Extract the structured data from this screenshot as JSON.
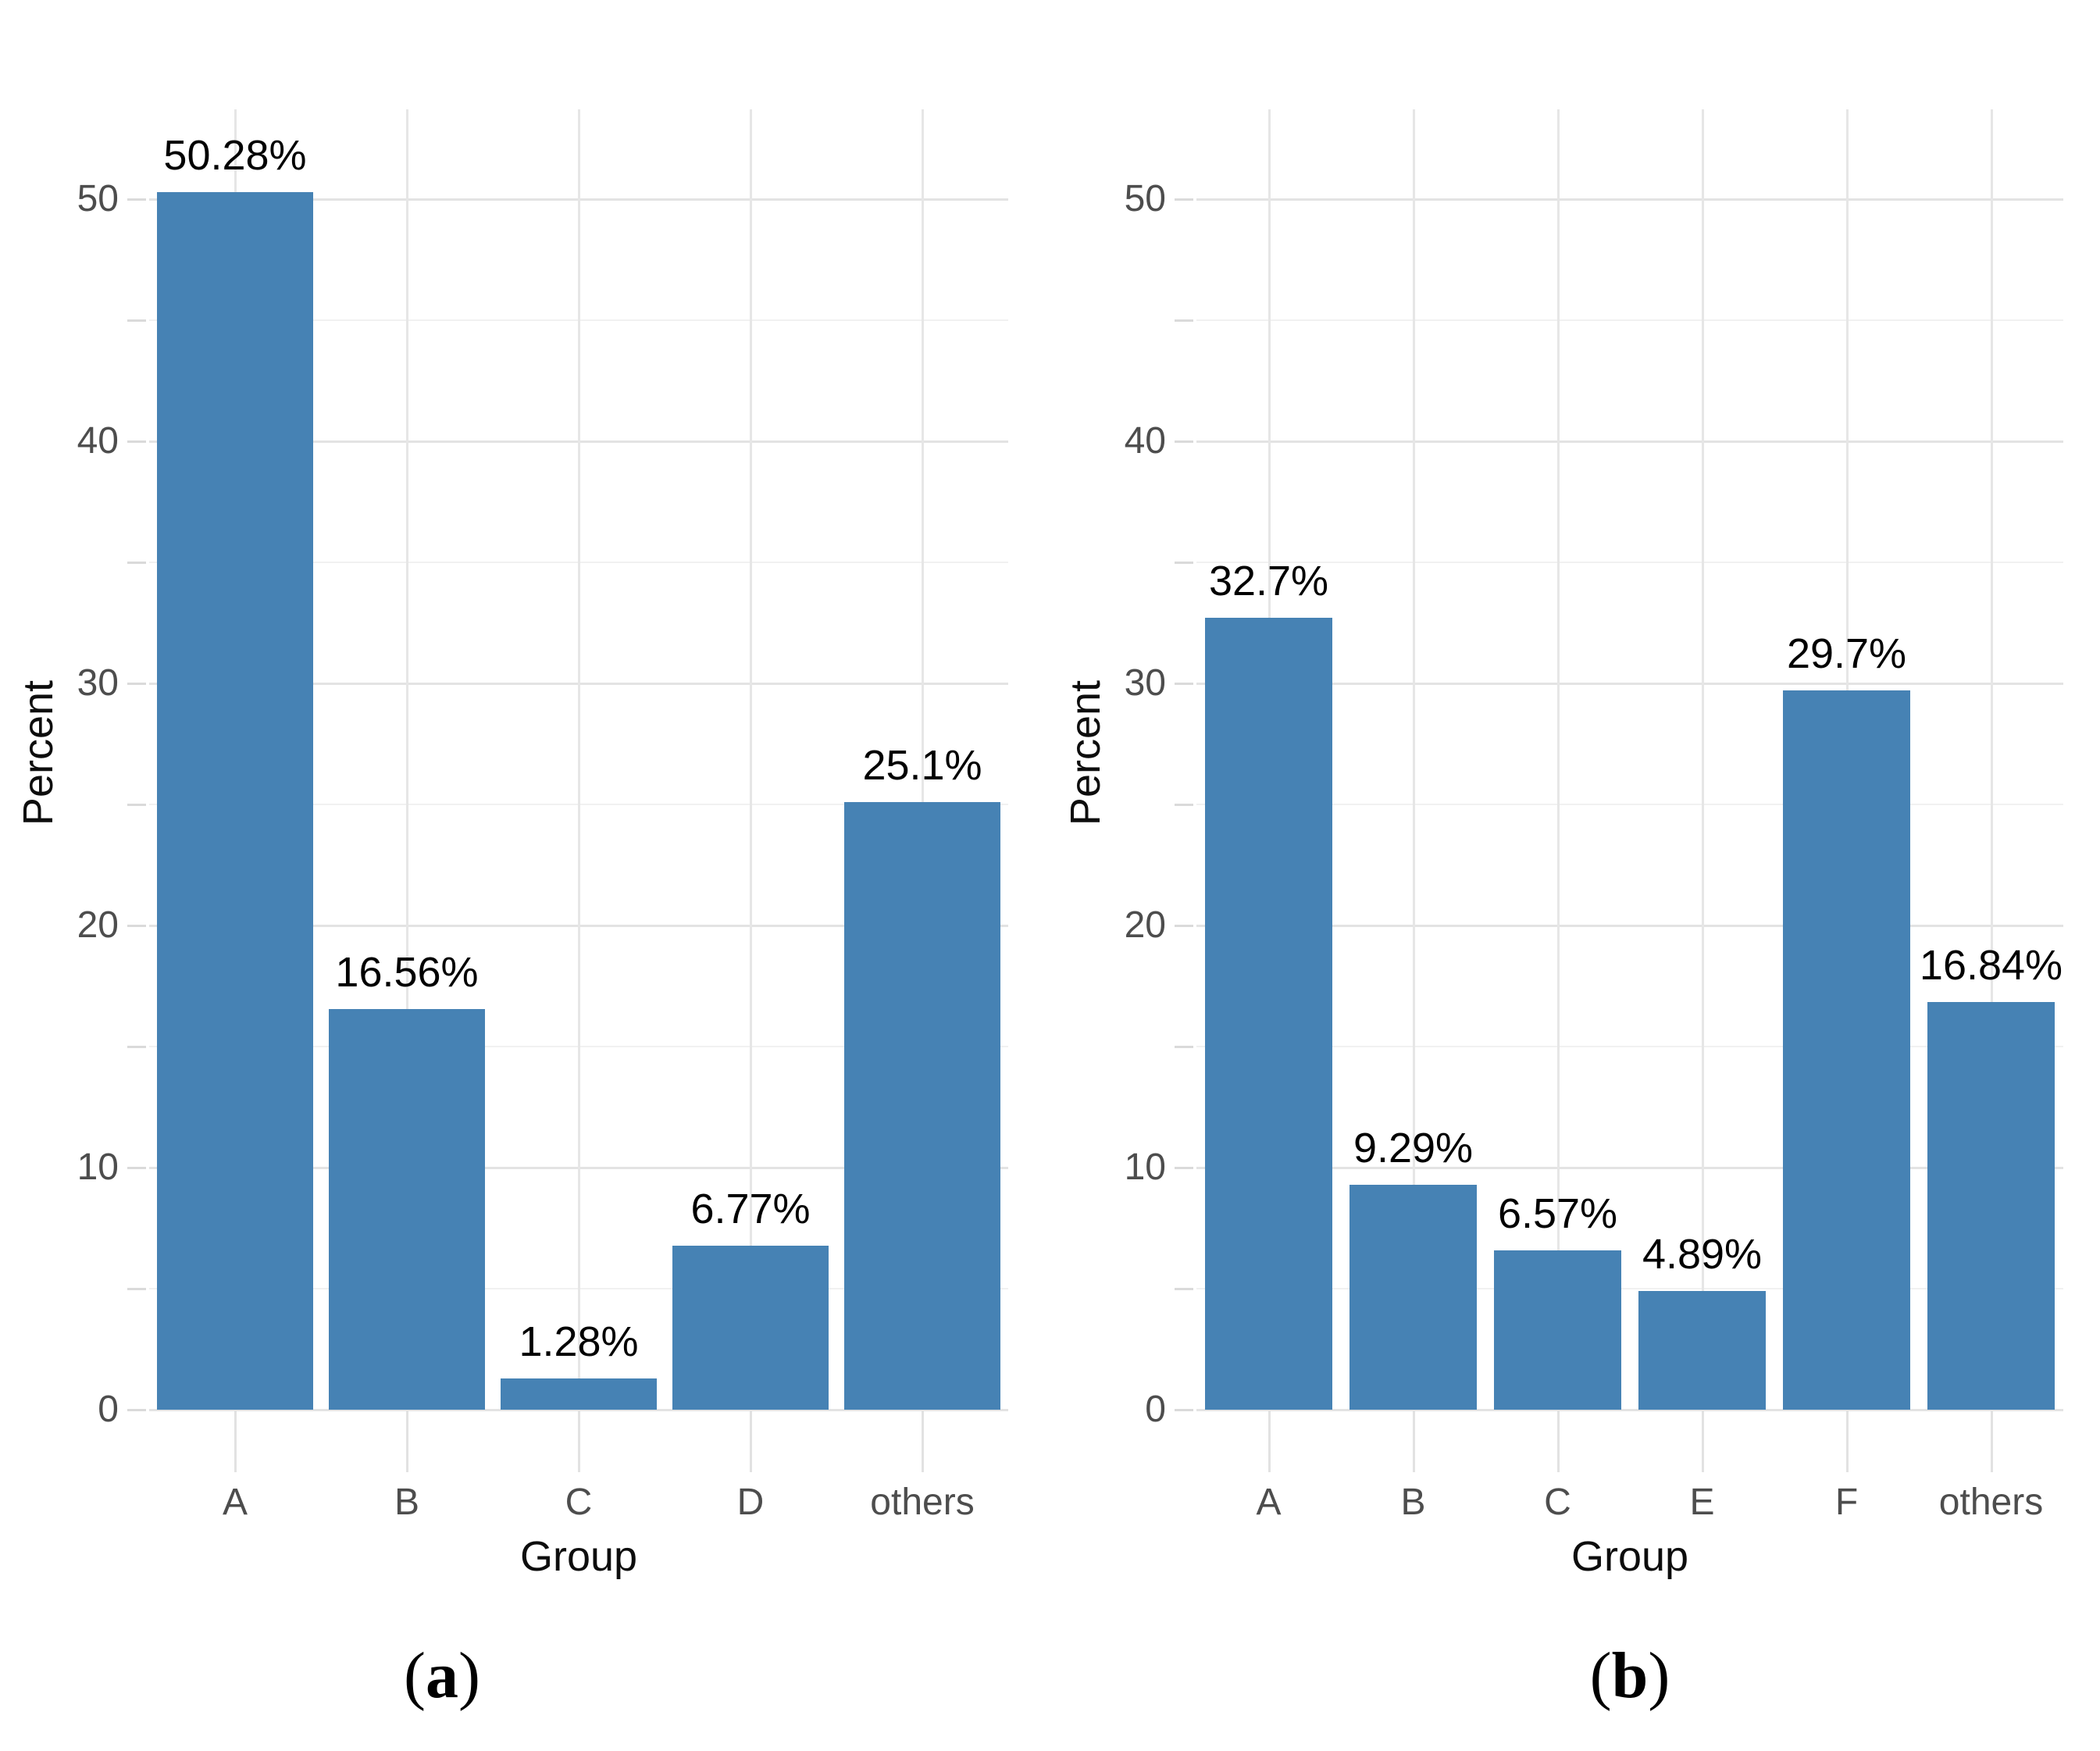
{
  "figure": {
    "bar_color": "#4682b4",
    "grid_major_color": "#e3e3e3",
    "grid_minor_color": "#f1f1f1",
    "axis_text_color": "#4d4d4d",
    "background_color": "#ffffff"
  },
  "chart_data": [
    {
      "type": "bar",
      "title": "",
      "xlabel": "Group",
      "ylabel": "Percent",
      "categories": [
        "A",
        "B",
        "C",
        "D",
        "others"
      ],
      "values": [
        50.28,
        16.56,
        1.28,
        6.77,
        25.1
      ],
      "value_labels": [
        "50.28%",
        "16.56%",
        "1.28%",
        "6.77%",
        "25.1%"
      ],
      "ylim": [
        0,
        50
      ],
      "y_major_ticks": [
        0,
        10,
        20,
        30,
        40,
        50
      ],
      "y_minor_ticks": [
        5,
        15,
        25,
        35,
        45
      ],
      "grid": "on",
      "legend": "none",
      "caption": {
        "open": "(",
        "letter": "a",
        "close": ")"
      }
    },
    {
      "type": "bar",
      "title": "",
      "xlabel": "Group",
      "ylabel": "Percent",
      "categories": [
        "A",
        "B",
        "C",
        "E",
        "F",
        "others"
      ],
      "values": [
        32.7,
        9.29,
        6.57,
        4.89,
        29.7,
        16.84
      ],
      "value_labels": [
        "32.7%",
        "9.29%",
        "6.57%",
        "4.89%",
        "29.7%",
        "16.84%"
      ],
      "ylim": [
        0,
        50
      ],
      "y_major_ticks": [
        0,
        10,
        20,
        30,
        40,
        50
      ],
      "y_minor_ticks": [
        5,
        15,
        25,
        35,
        45
      ],
      "grid": "on",
      "legend": "none",
      "caption": {
        "open": "(",
        "letter": "b",
        "close": ")"
      }
    }
  ]
}
